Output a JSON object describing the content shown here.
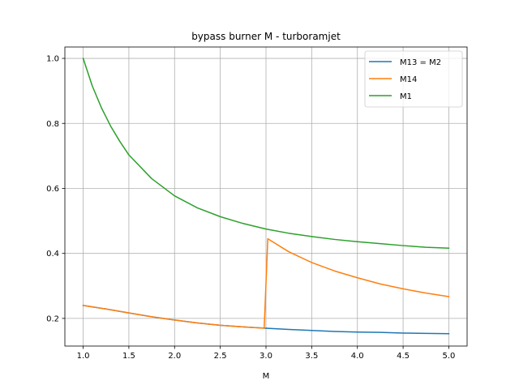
{
  "chart_data": {
    "type": "line",
    "title": "bypass burner M - turboramjet",
    "xlabel": "M",
    "ylabel": "",
    "xlim": [
      0.8,
      5.2
    ],
    "ylim": [
      0.115,
      1.035
    ],
    "xticks": [
      1.0,
      1.5,
      2.0,
      2.5,
      3.0,
      3.5,
      4.0,
      4.5,
      5.0
    ],
    "xtick_labels": [
      "1.0",
      "1.5",
      "2.0",
      "2.5",
      "3.0",
      "3.5",
      "4.0",
      "4.5",
      "5.0"
    ],
    "yticks": [
      0.2,
      0.4,
      0.6,
      0.8,
      1.0
    ],
    "ytick_labels": [
      "0.2",
      "0.4",
      "0.6",
      "0.8",
      "1.0"
    ],
    "grid": true,
    "legend_position": "top-right",
    "series": [
      {
        "name": "M13 = M2",
        "color": "#1f77b4",
        "x": [
          1.0,
          1.25,
          1.5,
          1.75,
          2.0,
          2.25,
          2.5,
          2.75,
          3.0,
          3.25,
          3.5,
          3.75,
          4.0,
          4.25,
          4.5,
          4.75,
          5.0
        ],
        "y": [
          0.24,
          0.229,
          0.217,
          0.205,
          0.195,
          0.186,
          0.179,
          0.174,
          0.17,
          0.166,
          0.163,
          0.16,
          0.158,
          0.157,
          0.155,
          0.154,
          0.153
        ]
      },
      {
        "name": "M14",
        "color": "#ff7f0e",
        "x": [
          1.0,
          1.25,
          1.5,
          1.75,
          2.0,
          2.25,
          2.5,
          2.75,
          2.98,
          3.02,
          3.25,
          3.5,
          3.75,
          4.0,
          4.25,
          4.5,
          4.75,
          5.0
        ],
        "y": [
          0.24,
          0.229,
          0.217,
          0.205,
          0.195,
          0.186,
          0.179,
          0.174,
          0.17,
          0.445,
          0.405,
          0.372,
          0.346,
          0.325,
          0.306,
          0.291,
          0.278,
          0.267
        ]
      },
      {
        "name": "M1",
        "color": "#2ca02c",
        "x": [
          1.0,
          1.1,
          1.2,
          1.3,
          1.4,
          1.5,
          1.75,
          2.0,
          2.25,
          2.5,
          2.75,
          3.0,
          3.25,
          3.5,
          3.75,
          4.0,
          4.25,
          4.5,
          4.75,
          5.0
        ],
        "y": [
          1.0,
          0.915,
          0.848,
          0.792,
          0.745,
          0.703,
          0.63,
          0.577,
          0.54,
          0.513,
          0.492,
          0.475,
          0.462,
          0.452,
          0.443,
          0.436,
          0.43,
          0.424,
          0.419,
          0.416
        ]
      }
    ]
  }
}
